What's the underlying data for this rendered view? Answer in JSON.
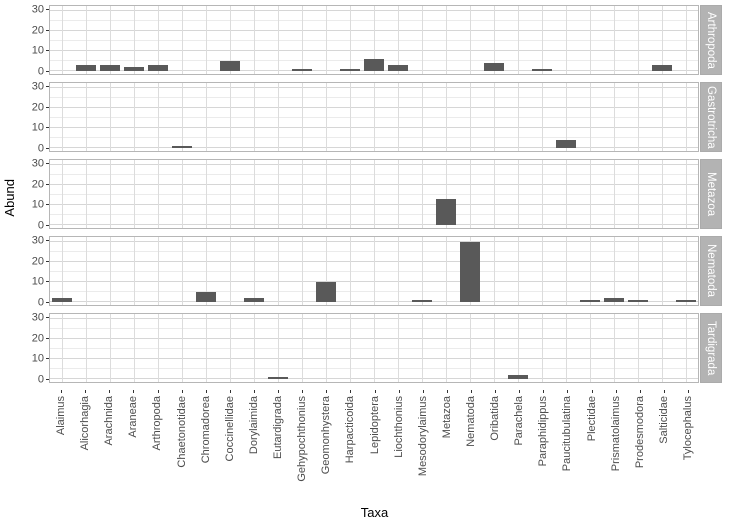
{
  "chart_data": {
    "type": "bar",
    "title": "",
    "xlabel": "Taxa",
    "ylabel": "Abund",
    "ylim": [
      0,
      30
    ],
    "yticks": [
      0,
      10,
      20,
      30
    ],
    "yticks_minor": [
      5,
      15,
      25
    ],
    "grid": true,
    "facet_label_side": "right",
    "categories": [
      "Alaimus",
      "Alicorhagia",
      "Arachnida",
      "Araneae",
      "Arthropoda",
      "Chaetonotidae",
      "Chromadorea",
      "Coccinellidae",
      "Dorylaimida",
      "Eutardigrada",
      "Gehypochthonius",
      "Geomonhystera",
      "Harpacticoida",
      "Lepidoptera",
      "Liochthonius",
      "Mesodorylaimus",
      "Metazoa",
      "Nematoda",
      "Oribatida",
      "Parachela",
      "Paraphidippus",
      "Paucitubulatina",
      "Plectidae",
      "Prismatolaimus",
      "Prodesmodora",
      "Salticidae",
      "Tylocephalus"
    ],
    "series": [
      {
        "name": "Arthropoda",
        "values": [
          0,
          3,
          3,
          2,
          3,
          0,
          0,
          5,
          0,
          0,
          1,
          0,
          1,
          6,
          3,
          0,
          0,
          0,
          4,
          0,
          1,
          0,
          0,
          0,
          0,
          3,
          0
        ]
      },
      {
        "name": "Gastrotricha",
        "values": [
          0,
          0,
          0,
          0,
          0,
          1,
          0,
          0,
          0,
          0,
          0,
          0,
          0,
          0,
          0,
          0,
          0,
          0,
          0,
          0,
          0,
          4,
          0,
          0,
          0,
          0,
          0
        ]
      },
      {
        "name": "Metazoa",
        "values": [
          0,
          0,
          0,
          0,
          0,
          0,
          0,
          0,
          0,
          0,
          0,
          0,
          0,
          0,
          0,
          0,
          13,
          0,
          0,
          0,
          0,
          0,
          0,
          0,
          0,
          0,
          0
        ]
      },
      {
        "name": "Nematoda",
        "values": [
          2,
          0,
          0,
          0,
          0,
          0,
          5,
          0,
          2,
          0,
          0,
          10,
          0,
          0,
          0,
          1,
          0,
          30,
          0,
          0,
          0,
          0,
          1,
          2,
          1,
          0,
          1
        ]
      },
      {
        "name": "Tardigrada",
        "values": [
          0,
          0,
          0,
          0,
          0,
          0,
          0,
          0,
          0,
          1,
          0,
          0,
          0,
          0,
          0,
          0,
          0,
          0,
          0,
          2,
          0,
          0,
          0,
          0,
          0,
          0,
          0
        ]
      }
    ],
    "colors": {
      "bar": "#595959",
      "strip_background": "#b3b3b3",
      "strip_text": "#ffffff",
      "axis_text": "#4d4d4d",
      "grid_major": "#d6d6d6",
      "grid_minor": "#ebebeb"
    }
  }
}
